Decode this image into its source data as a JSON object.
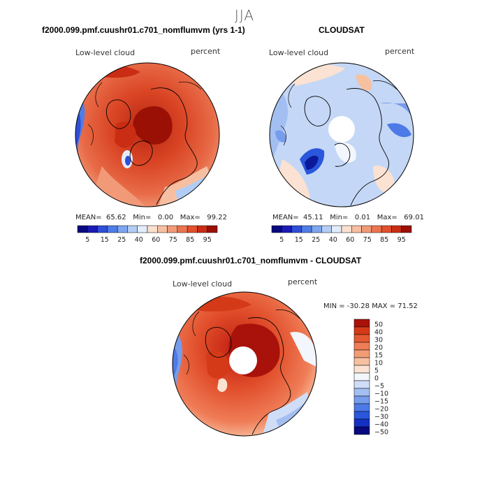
{
  "season": "JJA",
  "panels": [
    {
      "title": "f2000.099.pmf.cuushr01.c701_nomflumvm (yrs 1-1)",
      "field_label": "Low-level cloud",
      "units_label": "percent",
      "stats": {
        "mean_label": "MEAN=",
        "mean": "65.62",
        "min_label": "Min=",
        "min": "0.00",
        "max_label": "Max=",
        "max": "99.22"
      }
    },
    {
      "title": "CLOUDSAT",
      "field_label": "Low-level cloud",
      "units_label": "percent",
      "stats": {
        "mean_label": "MEAN=",
        "mean": "45.11",
        "min_label": "Min=",
        "min": "0.01",
        "max_label": "Max=",
        "max": "69.01"
      }
    },
    {
      "title": "f2000.099.pmf.cuushr01.c701_nomflumvm - CLOUDSAT",
      "field_label": "Low-level cloud",
      "units_label": "percent",
      "minmax_text": "MIN = -30.28 MAX =  71.52"
    }
  ],
  "colorbar_abs": {
    "colors": [
      "#08087f",
      "#1a1ab5",
      "#2f4fd6",
      "#4f7de6",
      "#7ea6f0",
      "#b2cdf5",
      "#e3ecfa",
      "#fbe0d0",
      "#f7bfa2",
      "#f29a77",
      "#ec7450",
      "#e2502d",
      "#c92d14",
      "#9b1005"
    ],
    "tick_labels": [
      "5",
      "15",
      "25",
      "40",
      "60",
      "75",
      "85",
      "95"
    ]
  },
  "colorbar_diff": {
    "colors": [
      "#08087f",
      "#1530c4",
      "#2a57dc",
      "#4d7ae6",
      "#779ceb",
      "#a3bff2",
      "#cfddf7",
      "#f3f6fc",
      "#fbe2d2",
      "#f7c0a1",
      "#f29c76",
      "#ef7d57",
      "#e65a33",
      "#d43a18",
      "#a8120a"
    ],
    "tick_labels": [
      "50",
      "40",
      "30",
      "20",
      "15",
      "10",
      "5",
      "0",
      "−5",
      "−10",
      "−15",
      "−20",
      "−30",
      "−40",
      "−50"
    ]
  }
}
